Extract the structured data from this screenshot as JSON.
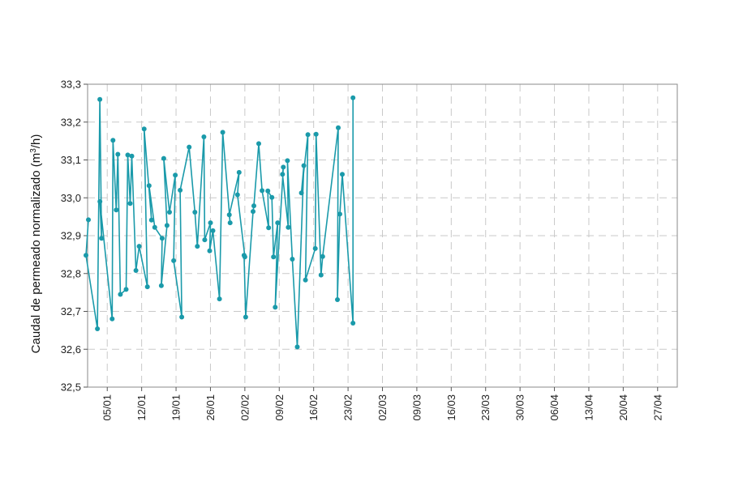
{
  "chart_data": {
    "type": "line",
    "title": "",
    "xlabel": "",
    "ylabel": "Caudal de permeado normalizado (m³/h)",
    "ylim": [
      32.5,
      33.3
    ],
    "yticks": [
      "32,5",
      "32,6",
      "32,7",
      "32,8",
      "32,9",
      "33,0",
      "33,1",
      "33,2",
      "33,3"
    ],
    "ytick_values": [
      32.5,
      32.6,
      32.7,
      32.8,
      32.9,
      33.0,
      33.1,
      33.2,
      33.3
    ],
    "xlim": [
      "2013-01-01",
      "2013-05-01"
    ],
    "xtick_dates": [
      "2013-01-05",
      "2013-01-12",
      "2013-01-19",
      "2013-01-26",
      "2013-02-02",
      "2013-02-09",
      "2013-02-16",
      "2013-02-23",
      "2013-03-02",
      "2013-03-09",
      "2013-03-16",
      "2013-03-23",
      "2013-03-30",
      "2013-04-06",
      "2013-04-13",
      "2013-04-20",
      "2013-04-27"
    ],
    "xticks": [
      "05/01",
      "12/01",
      "19/01",
      "26/01",
      "02/02",
      "09/02",
      "16/02",
      "23/02",
      "02/03",
      "09/03",
      "16/03",
      "23/03",
      "30/03",
      "06/04",
      "13/04",
      "20/04",
      "27/04"
    ],
    "grid": true,
    "color": "#1a9aaa",
    "series": [
      {
        "points": [
          [
            "2013-01-01",
            32.942
          ],
          [
            "2013-01-01",
            32.848
          ],
          [
            "2013-01-03",
            32.654
          ],
          [
            "2013-01-03",
            33.26
          ],
          [
            "2013-01-04",
            32.893
          ],
          [
            "2013-01-04",
            32.99
          ],
          [
            "2013-01-06",
            32.68
          ],
          [
            "2013-01-06",
            33.152
          ],
          [
            "2013-01-07",
            32.968
          ],
          [
            "2013-01-07",
            33.115
          ],
          [
            "2013-01-08",
            32.745
          ],
          [
            "2013-01-09",
            32.758
          ],
          [
            "2013-01-09",
            33.113
          ],
          [
            "2013-01-10",
            32.985
          ],
          [
            "2013-01-10",
            33.11
          ],
          [
            "2013-01-11",
            32.808
          ],
          [
            "2013-01-12",
            32.872
          ],
          [
            "2013-01-13",
            32.765
          ],
          [
            "2013-01-13",
            33.182
          ],
          [
            "2013-01-14",
            32.941
          ],
          [
            "2013-01-14",
            33.032
          ],
          [
            "2013-01-15",
            32.922
          ],
          [
            "2013-01-16",
            32.893
          ],
          [
            "2013-01-16",
            32.768
          ],
          [
            "2013-01-17",
            32.927
          ],
          [
            "2013-01-17",
            33.104
          ],
          [
            "2013-01-18",
            32.962
          ],
          [
            "2013-01-19",
            33.06
          ],
          [
            "2013-01-19",
            32.834
          ],
          [
            "2013-01-20",
            32.685
          ],
          [
            "2013-01-20",
            33.02
          ],
          [
            "2013-01-22",
            33.134
          ],
          [
            "2013-01-23",
            32.962
          ],
          [
            "2013-01-24",
            32.872
          ],
          [
            "2013-01-25",
            33.161
          ],
          [
            "2013-01-25",
            32.889
          ],
          [
            "2013-01-26",
            32.934
          ],
          [
            "2013-01-26",
            32.86
          ],
          [
            "2013-01-27",
            32.913
          ],
          [
            "2013-01-28",
            32.733
          ],
          [
            "2013-01-29",
            33.173
          ],
          [
            "2013-01-30",
            32.934
          ],
          [
            "2013-01-30",
            32.955
          ],
          [
            "2013-02-01",
            33.067
          ],
          [
            "2013-02-01",
            33.008
          ],
          [
            "2013-02-02",
            32.844
          ],
          [
            "2013-02-02",
            32.848
          ],
          [
            "2013-02-03",
            32.685
          ],
          [
            "2013-02-04",
            32.964
          ],
          [
            "2013-02-04",
            32.979
          ],
          [
            "2013-02-05",
            33.143
          ],
          [
            "2013-02-06",
            33.019
          ],
          [
            "2013-02-07",
            32.921
          ],
          [
            "2013-02-07",
            33.018
          ],
          [
            "2013-02-08",
            33.001
          ],
          [
            "2013-02-08",
            32.844
          ],
          [
            "2013-02-09",
            32.934
          ],
          [
            "2013-02-09",
            32.711
          ],
          [
            "2013-02-10",
            33.081
          ],
          [
            "2013-02-10",
            33.062
          ],
          [
            "2013-02-11",
            32.922
          ],
          [
            "2013-02-11",
            33.098
          ],
          [
            "2013-02-12",
            32.838
          ],
          [
            "2013-02-13",
            32.606
          ],
          [
            "2013-02-14",
            33.085
          ],
          [
            "2013-02-14",
            33.013
          ],
          [
            "2013-02-15",
            33.167
          ],
          [
            "2013-02-15",
            32.783
          ],
          [
            "2013-02-17",
            32.866
          ],
          [
            "2013-02-17",
            33.168
          ],
          [
            "2013-02-18",
            32.796
          ],
          [
            "2013-02-18",
            32.845
          ],
          [
            "2013-02-21",
            33.185
          ],
          [
            "2013-02-21",
            32.731
          ],
          [
            "2013-02-22",
            32.957
          ],
          [
            "2013-02-22",
            33.062
          ],
          [
            "2013-02-24",
            32.669
          ],
          [
            "2013-02-24",
            33.264
          ]
        ]
      }
    ]
  }
}
